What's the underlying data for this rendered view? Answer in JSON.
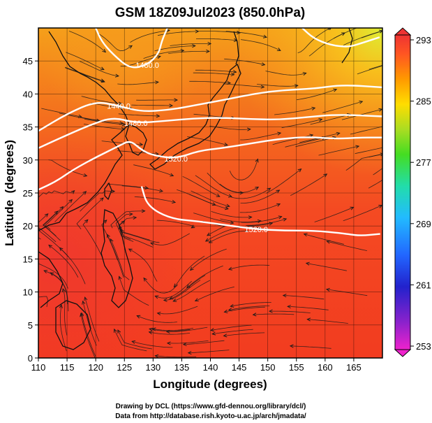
{
  "title": "GSM 18Z09Jul2023 (850.0hPa)",
  "chart_data": {
    "type": "heatmap",
    "title": "GSM 18Z09Jul2023 (850.0hPa)",
    "xlabel": "Longitude (degrees)",
    "ylabel": "Latitude  (degrees)",
    "xlim": [
      110,
      170
    ],
    "ylim": [
      0,
      50
    ],
    "x_ticks": [
      "110",
      "115",
      "120",
      "125",
      "130",
      "135",
      "140",
      "145",
      "150",
      "155",
      "160",
      "165"
    ],
    "y_ticks": [
      "0",
      "5",
      "10",
      "15",
      "20",
      "25",
      "30",
      "35",
      "40",
      "45"
    ],
    "grid": true,
    "colorbar": {
      "position": "right",
      "ticks": [
        "293",
        "285",
        "277",
        "269",
        "261",
        "253"
      ],
      "range": [
        253,
        293
      ],
      "colors": [
        "#ee22cc",
        "#8822cc",
        "#2222cc",
        "#2266ff",
        "#22bbff",
        "#22ddaa",
        "#44dd22",
        "#aadd22",
        "#ffdd00",
        "#ff9900",
        "#ff5522",
        "#ee3333"
      ]
    },
    "contours": [
      {
        "label": "1440.0",
        "value": 1440,
        "lon": [
          110,
          115,
          120,
          124,
          128,
          133,
          138,
          143,
          148,
          153,
          158,
          163,
          170
        ],
        "lat": [
          34.4,
          37,
          38.9,
          38.2,
          37.3,
          37.6,
          38.4,
          39.2,
          40.1,
          40.6,
          40.8,
          41.4,
          41
        ]
      },
      {
        "label": "1480.0",
        "value": 1480,
        "lon": [
          110,
          114,
          119,
          123,
          127,
          132,
          137,
          142,
          147,
          152,
          157,
          162,
          170
        ],
        "lat": [
          31.8,
          33.4,
          35.3,
          36.5,
          35.6,
          35.9,
          36.3,
          36.4,
          36.2,
          36.1,
          36.5,
          36.9,
          36.6
        ]
      },
      {
        "label": "1520.0",
        "value": 1520,
        "lon": [
          110,
          113,
          116,
          120,
          124,
          126,
          128,
          130,
          134,
          138,
          142,
          147,
          152,
          157,
          162,
          166,
          170
        ],
        "lat": [
          25.5,
          26.7,
          28.5,
          30.4,
          32.1,
          33,
          31.5,
          30.7,
          30.2,
          31.4,
          31.8,
          32.5,
          33.2,
          33.5,
          33.2,
          33.4,
          33.4
        ]
      },
      {
        "label": "1520.0",
        "value": 1520,
        "lon": [
          128,
          129,
          133,
          138,
          143,
          148,
          153,
          158,
          163,
          166,
          169.6
        ],
        "lat": [
          26,
          23,
          21.1,
          20.7,
          20.1,
          19.5,
          19.3,
          19.3,
          18.9,
          18.5,
          18.8
        ]
      },
      {
        "label": "1480.0",
        "value": 1480,
        "lon": [
          120,
          121,
          123,
          126,
          129,
          131,
          131.5,
          132.5
        ],
        "lat": [
          50,
          48,
          46,
          43.8,
          44.4,
          46.1,
          48,
          50
        ]
      },
      {
        "label": "",
        "value": 1480,
        "lon": [
          156,
          158,
          161,
          164,
          166,
          169.5
        ],
        "lat": [
          50,
          48.4,
          47.4,
          47.1,
          47.6,
          48.6
        ]
      }
    ]
  },
  "credits": {
    "line1": "Drawing by DCL (https://www.gfd-dennou.org/library/dcl/)",
    "line2": "Data from http://database.rish.kyoto-u.ac.jp/arch/jmadata/"
  }
}
